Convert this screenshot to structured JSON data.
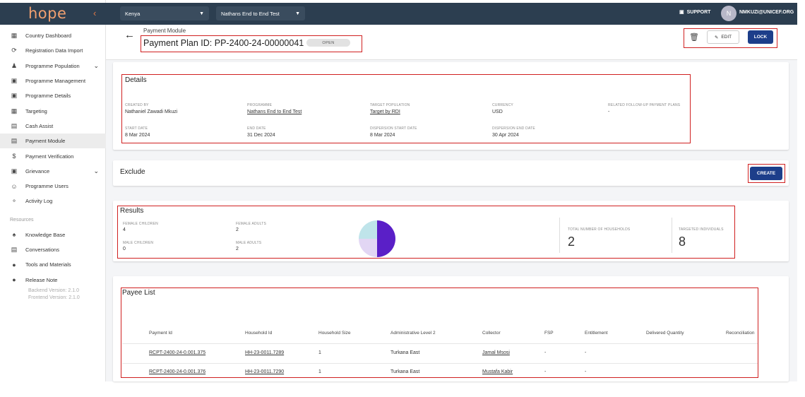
{
  "sidebar": {
    "logo": "hope",
    "items": [
      {
        "label": "Country Dashboard",
        "icon": "dashboard-icon"
      },
      {
        "label": "Registration Data Import",
        "icon": "refresh-icon"
      },
      {
        "label": "Programme Population",
        "icon": "people-icon",
        "expandable": true
      },
      {
        "label": "Programme Management",
        "icon": "clipboard-icon"
      },
      {
        "label": "Programme Details",
        "icon": "clipboard-icon"
      },
      {
        "label": "Targeting",
        "icon": "table-icon"
      },
      {
        "label": "Cash Assist",
        "icon": "card-icon"
      },
      {
        "label": "Payment Module",
        "icon": "card-icon",
        "active": true
      },
      {
        "label": "Payment Verification",
        "icon": "dollar-icon"
      },
      {
        "label": "Grievance",
        "icon": "alert-box-icon",
        "expandable": true
      },
      {
        "label": "Programme Users",
        "icon": "user-circle-icon"
      },
      {
        "label": "Activity Log",
        "icon": "fingerprint-icon"
      }
    ],
    "resources_label": "Resources",
    "resources": [
      {
        "label": "Knowledge Base",
        "icon": "book-icon"
      },
      {
        "label": "Conversations",
        "icon": "chat-icon"
      },
      {
        "label": "Tools and Materials",
        "icon": "info-icon"
      },
      {
        "label": "Release Note",
        "icon": "info-icon"
      }
    ],
    "backend_version": "Backend Version: 2.1.0",
    "frontend_version": "Frontend Version: 2.1.0"
  },
  "topbar": {
    "country": "Kenya",
    "programme": "Nathans End to End Test",
    "support": "SUPPORT",
    "avatar_initial": "N",
    "user": "NMKUZI@UNICEF.ORG"
  },
  "header": {
    "breadcrumb": "Payment Module",
    "title": "Payment Plan ID: PP-2400-24-00000041",
    "status": "OPEN",
    "edit_label": "EDIT",
    "lock_label": "LOCK"
  },
  "details": {
    "title": "Details",
    "fields": [
      {
        "label": "CREATED BY",
        "value": "Nathaniel Zawadi Mkuzi",
        "link": false
      },
      {
        "label": "PROGRAMME",
        "value": "Nathans End to End Test",
        "link": true
      },
      {
        "label": "TARGET POPULATION",
        "value": "Target by RDI",
        "link": true
      },
      {
        "label": "CURRENCY",
        "value": "USD",
        "link": false
      },
      {
        "label": "RELATED FOLLOW-UP PAYMENT PLANS",
        "value": "-",
        "link": false
      },
      {
        "label": "START DATE",
        "value": "8 Mar 2024",
        "link": false
      },
      {
        "label": "END DATE",
        "value": "31 Dec 2024",
        "link": false
      },
      {
        "label": "DISPERSION START DATE",
        "value": "8 Mar 2024",
        "link": false
      },
      {
        "label": "DISPERSION END DATE",
        "value": "30 Apr 2024",
        "link": false
      }
    ]
  },
  "exclude": {
    "title": "Exclude",
    "create_label": "CREATE"
  },
  "results": {
    "title": "Results",
    "female_children_label": "FEMALE CHILDREN",
    "female_children": "4",
    "female_adults_label": "FEMALE ADULTS",
    "female_adults": "2",
    "male_children_label": "MALE CHILDREN",
    "male_children": "0",
    "male_adults_label": "MALE ADULTS",
    "male_adults": "2",
    "total_households_label": "TOTAL NUMBER OF HOUSEHOLDS",
    "total_households": "2",
    "targeted_individuals_label": "TARGETED INDIVIDUALS",
    "targeted_individuals": "8",
    "pie": [
      {
        "name": "Female Children",
        "value": 4,
        "color": "#5a1fc7"
      },
      {
        "name": "Female Adults",
        "value": 2,
        "color": "#e2d6f4"
      },
      {
        "name": "Male Children",
        "value": 0,
        "color": "#8fd0dc"
      },
      {
        "name": "Male Adults",
        "value": 2,
        "color": "#bfe4ea"
      }
    ]
  },
  "payees": {
    "title": "Payee List",
    "columns": [
      "Payment Id",
      "Household Id",
      "Household Size",
      "Administrative Level 2",
      "Collector",
      "FSP",
      "Entitlement",
      "Delivered Quantity",
      "Reconciliation"
    ],
    "rows": [
      [
        "RCPT-2400-24-0.001.375",
        "HH-23-0011.7289",
        "1",
        "Turkana East",
        "Jamal Msosi",
        "-",
        "-",
        "",
        ""
      ],
      [
        "RCPT-2400-24-0.001.376",
        "HH-23-0011.7290",
        "1",
        "Turkana East",
        "Mustafa Kabir",
        "-",
        "-",
        "",
        ""
      ]
    ]
  }
}
